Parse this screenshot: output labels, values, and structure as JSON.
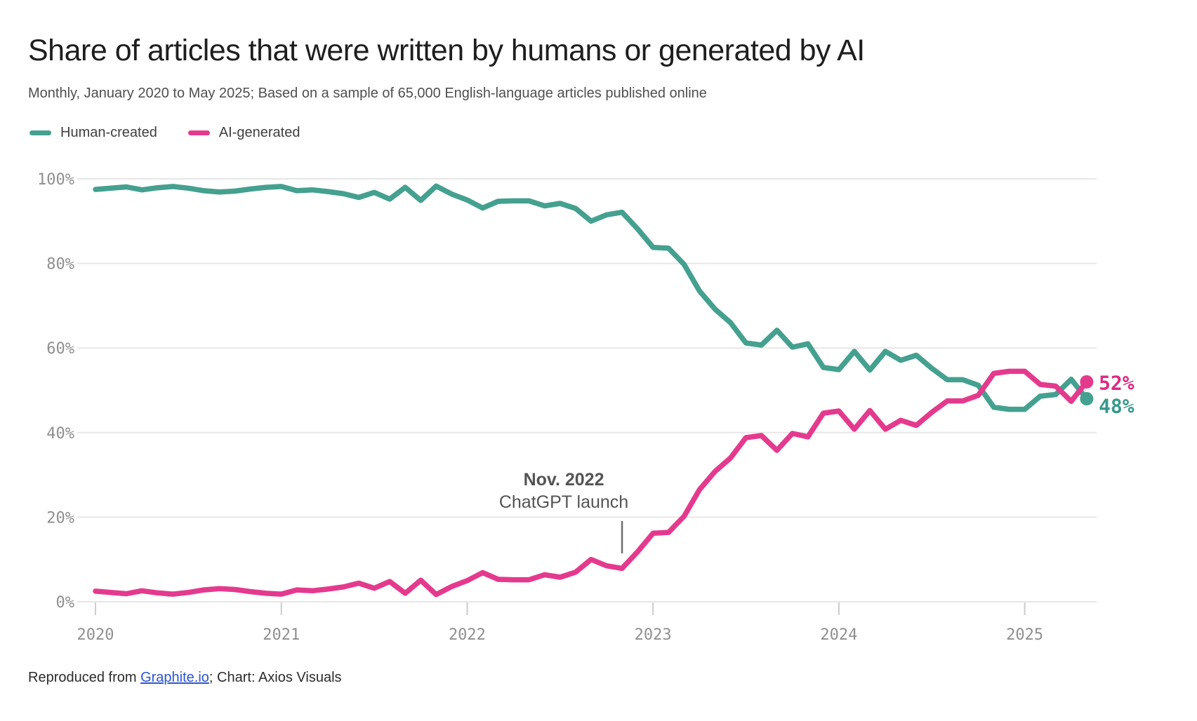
{
  "header": {
    "title": "Share of articles that were written by humans or generated by AI",
    "subtitle": "Monthly, January 2020 to May 2025; Based on a sample of 65,000 English-language articles published online"
  },
  "legend": [
    {
      "label": "Human-created",
      "color": "#44a08f"
    },
    {
      "label": "AI-generated",
      "color": "#e43a8e"
    }
  ],
  "chart_data": {
    "type": "line",
    "title": "Share of articles that were written by humans or generated by AI",
    "x_unit": "month",
    "x_start": "2020-01",
    "x_end": "2025-05",
    "x_tick_labels": [
      "2020",
      "2021",
      "2022",
      "2023",
      "2024",
      "2025"
    ],
    "y_ticks": [
      0,
      20,
      40,
      60,
      80,
      100
    ],
    "y_tick_suffix": "%",
    "ylim": [
      0,
      100
    ],
    "grid": "horizontal",
    "legend_position": "top-left",
    "annotation": {
      "line1": "Nov. 2022",
      "line2": "ChatGPT launch",
      "x_month_index": 34
    },
    "series": [
      {
        "name": "Human-created",
        "color": "#44a08f",
        "label_color": "#38998a",
        "end_label": "48%",
        "values": [
          97.5,
          97.8,
          98.1,
          97.4,
          97.9,
          98.2,
          97.8,
          97.2,
          96.9,
          97.1,
          97.6,
          98.0,
          98.2,
          97.2,
          97.4,
          97.0,
          96.5,
          95.6,
          96.8,
          95.2,
          98.0,
          94.9,
          98.3,
          96.4,
          95.0,
          93.1,
          94.7,
          94.8,
          94.8,
          93.6,
          94.2,
          93.0,
          90.0,
          91.5,
          92.1,
          88.2,
          83.8,
          83.6,
          79.8,
          73.5,
          69.2,
          66.0,
          61.2,
          60.7,
          64.2,
          60.2,
          61.0,
          55.4,
          54.9,
          59.2,
          54.8,
          59.2,
          57.1,
          58.3,
          55.2,
          52.5,
          52.5,
          51.2,
          46.0,
          45.5,
          45.5,
          48.6,
          49.0,
          52.6,
          48.0
        ]
      },
      {
        "name": "AI-generated",
        "color": "#e43a8e",
        "label_color": "#dc2a81",
        "end_label": "52%",
        "values": [
          2.5,
          2.2,
          1.9,
          2.6,
          2.1,
          1.8,
          2.2,
          2.8,
          3.1,
          2.9,
          2.4,
          2.0,
          1.8,
          2.8,
          2.6,
          3.0,
          3.5,
          4.4,
          3.2,
          4.8,
          2.0,
          5.1,
          1.7,
          3.6,
          5.0,
          6.9,
          5.3,
          5.2,
          5.2,
          6.4,
          5.8,
          7.0,
          10.0,
          8.5,
          7.9,
          11.8,
          16.2,
          16.4,
          20.2,
          26.5,
          30.8,
          34.0,
          38.8,
          39.3,
          35.8,
          39.8,
          39.0,
          44.6,
          45.1,
          40.8,
          45.2,
          40.8,
          42.9,
          41.7,
          44.8,
          47.5,
          47.5,
          48.8,
          54.0,
          54.5,
          54.5,
          51.4,
          51.0,
          47.4,
          52.0
        ]
      }
    ],
    "colors": {
      "gridline": "#e7e7e7",
      "axis_tick": "#cccccc",
      "axis_text": "#8f8f8f",
      "annotation_text": "#545454",
      "annotation_tick": "#6e6e6e"
    }
  },
  "footer": {
    "prefix": "Reproduced from ",
    "link": "Graphite.io",
    "suffix": "; Chart: Axios Visuals"
  }
}
